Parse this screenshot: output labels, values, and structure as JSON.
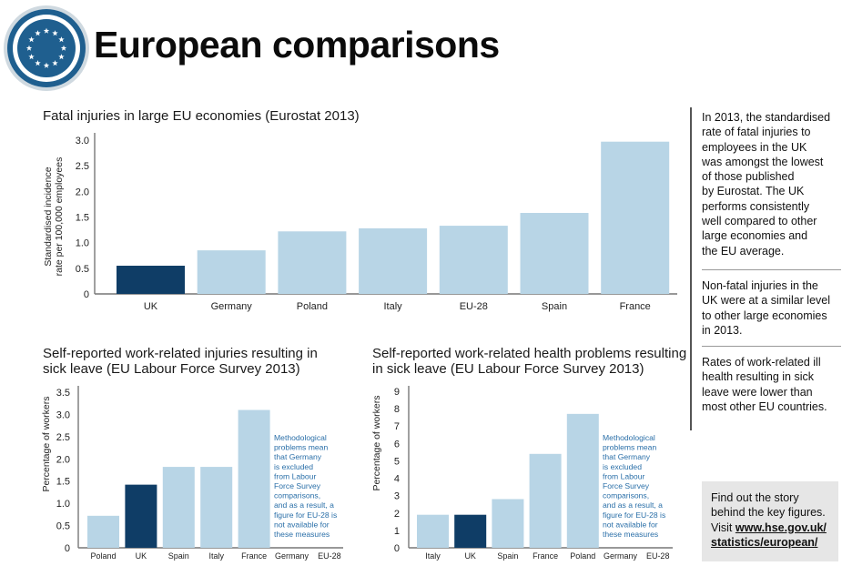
{
  "page_title": "European comparisons",
  "colors": {
    "highlight": "#0f3d66",
    "bar": "#b8d5e6",
    "note_text": "#2a6fa8",
    "logo_ring": "#1f5f8f",
    "sidebar_box": "#e6e6e6"
  },
  "chart_data": [
    {
      "id": "fatal",
      "type": "bar",
      "title": "Fatal injuries in large EU economies (Eurostat 2013)",
      "ylabel": "Standardised incidence rate per 100,000 employees",
      "ylabel_lines": [
        "Standardised incidence",
        "rate per 100,000 employees"
      ],
      "xlabel": "",
      "ylim": [
        0,
        3.0
      ],
      "yticks": [
        "0",
        "0.5",
        "1.0",
        "1.5",
        "2.0",
        "2.5",
        "3.0"
      ],
      "categories": [
        "UK",
        "Germany",
        "Poland",
        "Italy",
        "EU-28",
        "Spain",
        "France"
      ],
      "values": [
        0.55,
        0.85,
        1.22,
        1.28,
        1.33,
        1.58,
        2.97
      ],
      "highlight": "UK",
      "note": []
    },
    {
      "id": "injuries",
      "type": "bar",
      "title": "Self-reported work-related injuries resulting in sick leave (EU Labour Force Survey 2013)",
      "title_lines": [
        "Self-reported work-related injuries resulting in",
        "sick leave (EU Labour Force Survey 2013)"
      ],
      "ylabel": "Percentage of workers",
      "ylabel_lines": [
        "Percentage of workers"
      ],
      "xlabel": "",
      "ylim": [
        0,
        3.5
      ],
      "yticks": [
        "0",
        "0.5",
        "1.0",
        "1.5",
        "2.0",
        "2.5",
        "3.0",
        "3.5"
      ],
      "categories": [
        "Poland",
        "UK",
        "Spain",
        "Italy",
        "France",
        "Germany",
        "EU-28"
      ],
      "values": [
        0.72,
        1.42,
        1.82,
        1.82,
        3.1,
        null,
        null
      ],
      "highlight": "UK",
      "note": [
        "Methodological",
        "problems mean",
        "that Germany",
        "is excluded",
        "from Labour",
        "Force Survey",
        "comparisons,",
        "and as a result, a",
        "figure for EU-28 is",
        "not available for",
        "these measures"
      ]
    },
    {
      "id": "health",
      "type": "bar",
      "title": "Self-reported work-related health problems resulting in sick leave (EU Labour Force Survey 2013)",
      "title_lines": [
        "Self-reported work-related health problems resulting",
        "in sick leave (EU Labour Force Survey 2013)"
      ],
      "ylabel": "Percentage of workers",
      "ylabel_lines": [
        "Percentage of workers"
      ],
      "xlabel": "",
      "ylim": [
        0,
        9
      ],
      "yticks": [
        "0",
        "1",
        "2",
        "3",
        "4",
        "5",
        "6",
        "7",
        "8",
        "9"
      ],
      "categories": [
        "Italy",
        "UK",
        "Spain",
        "France",
        "Poland",
        "Germany",
        "EU-28"
      ],
      "values": [
        1.9,
        1.9,
        2.8,
        5.4,
        7.7,
        null,
        null
      ],
      "highlight": "UK",
      "note": [
        "Methodological",
        "problems mean",
        "that Germany",
        "is excluded",
        "from Labour",
        "Force Survey",
        "comparisons,",
        "and as a result, a",
        "figure for EU-28 is",
        "not available for",
        "these measures"
      ]
    }
  ],
  "sidebar": {
    "para1": "In 2013, the standardised rate of fatal injuries to employees in the UK was amongst the lowest of those published by Eurostat. The UK performs consistently well compared to other large economies and the EU average.",
    "para1_lines": [
      "In 2013, the standardised",
      "rate of fatal injuries to",
      "employees in the UK",
      "was amongst the lowest",
      "of those published",
      "by Eurostat. The UK",
      "performs consistently",
      "well compared to other",
      "large economies and",
      "the EU average."
    ],
    "para2_lines": [
      "Non-fatal injuries in the",
      "UK were at a similar level",
      "to other large economies",
      "in 2013."
    ],
    "para3_lines": [
      "Rates of work-related ill",
      "health resulting in sick",
      "leave were lower than",
      "most other EU countries."
    ],
    "box_lines": [
      "Find out the story",
      "behind the key figures."
    ],
    "box_visit": "Visit",
    "box_link_lines": [
      "www.hse.gov.uk/",
      "statistics/european/"
    ]
  }
}
